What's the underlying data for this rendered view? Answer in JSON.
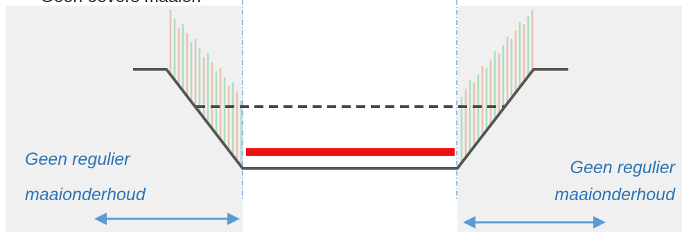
{
  "title_partial": "Geen oevers maaien",
  "left_zone": {
    "line1": "Geen regulier",
    "line2": "maaionderhoud"
  },
  "right_zone": {
    "line1": "Geen regulier",
    "line2": "maaionderhoud"
  },
  "colors": {
    "zone_fill": "#f0f0f0",
    "profile_line": "#555555",
    "water_level_dashed": "#4a4a4a",
    "bottom_bar": "#ee1111",
    "arrow": "#5b9bd5",
    "guide_line": "#5b9bd5",
    "vegetation_green": "#9fdbb8",
    "vegetation_orange": "#e8b9a0",
    "label_text": "#2e74b5"
  }
}
